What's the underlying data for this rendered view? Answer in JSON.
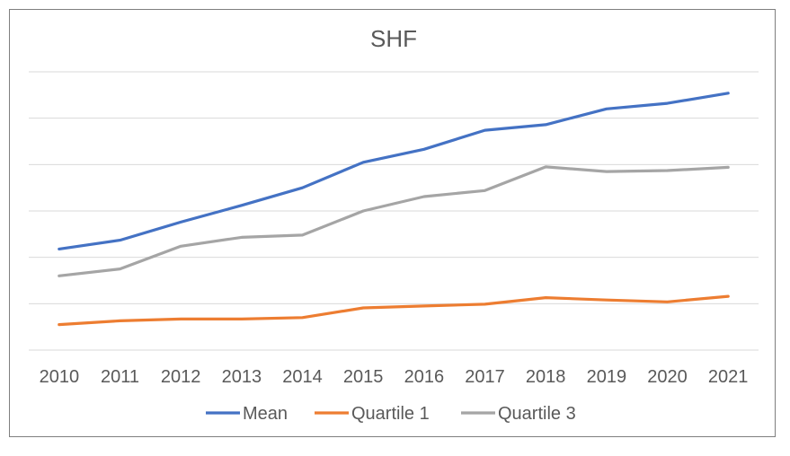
{
  "chart_data": {
    "type": "line",
    "title": "SHF",
    "xlabel": "",
    "ylabel": "",
    "categories": [
      "2010",
      "2011",
      "2012",
      "2013",
      "2014",
      "2015",
      "2016",
      "2017",
      "2018",
      "2019",
      "2020",
      "2021"
    ],
    "ylim": [
      0,
      6
    ],
    "grid": true,
    "legend_position": "bottom",
    "series": [
      {
        "name": "Mean",
        "color": "#4472c4",
        "values": [
          2.18,
          2.37,
          2.76,
          3.12,
          3.5,
          4.05,
          4.33,
          4.74,
          4.86,
          5.2,
          5.32,
          5.54
        ]
      },
      {
        "name": "Quartile 1",
        "color": "#ed7d31",
        "values": [
          0.55,
          0.63,
          0.67,
          0.67,
          0.7,
          0.91,
          0.95,
          0.99,
          1.13,
          1.08,
          1.04,
          1.16
        ]
      },
      {
        "name": "Quartile 3",
        "color": "#a5a5a5",
        "values": [
          1.6,
          1.75,
          2.24,
          2.43,
          2.48,
          3.0,
          3.31,
          3.44,
          3.95,
          3.85,
          3.87,
          3.94
        ]
      }
    ]
  }
}
